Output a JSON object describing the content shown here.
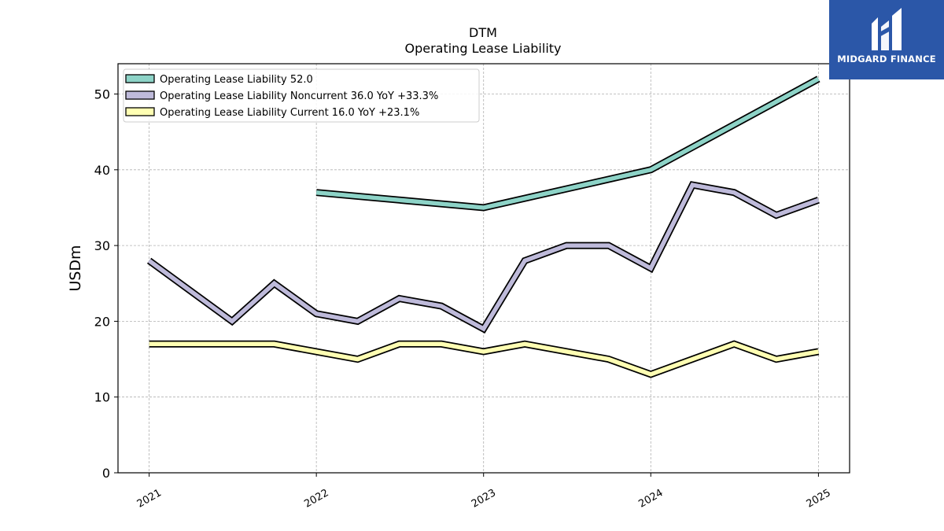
{
  "brand": {
    "name": "MIDGARD FINANCE",
    "bg_color": "#2b57a8",
    "icon": "midgard-logo-mark"
  },
  "chart_data": {
    "type": "line",
    "title": "DTM",
    "subtitle": "Operating Lease Liability",
    "xlabel": "",
    "ylabel": "USDm",
    "ylim": [
      0,
      54
    ],
    "yticks": [
      0,
      10,
      20,
      30,
      40,
      50
    ],
    "xticks": [
      "2021",
      "2022",
      "2023",
      "2024",
      "2025"
    ],
    "grid": true,
    "legend_position": "top-left",
    "series": [
      {
        "name": "Operating Lease Liability  52.0",
        "color": "#8dd3c7",
        "points": [
          [
            "2022-01-01",
            37.0
          ],
          [
            "2023-01-01",
            35.0
          ],
          [
            "2024-01-01",
            40.0
          ],
          [
            "2025-01-01",
            52.0
          ]
        ]
      },
      {
        "name": "Operating Lease Liability Noncurrent  36.0 YoY +33.3%",
        "color": "#bebada",
        "points": [
          [
            "2021-01-01",
            28.0
          ],
          [
            "2021-07-01",
            20.0
          ],
          [
            "2021-10-01",
            25.0
          ],
          [
            "2022-01-01",
            21.0
          ],
          [
            "2022-04-01",
            20.0
          ],
          [
            "2022-07-01",
            23.0
          ],
          [
            "2022-10-01",
            22.0
          ],
          [
            "2023-01-01",
            19.0
          ],
          [
            "2023-04-01",
            28.0
          ],
          [
            "2023-07-01",
            30.0
          ],
          [
            "2023-10-01",
            30.0
          ],
          [
            "2024-01-01",
            27.0
          ],
          [
            "2024-04-01",
            38.0
          ],
          [
            "2024-07-01",
            37.0
          ],
          [
            "2024-10-01",
            34.0
          ],
          [
            "2025-01-01",
            36.0
          ]
        ]
      },
      {
        "name": "Operating Lease Liability Current  16.0 YoY +23.1%",
        "color": "#ffffb3",
        "points": [
          [
            "2021-01-01",
            17.0
          ],
          [
            "2021-10-01",
            17.0
          ],
          [
            "2022-04-01",
            15.0
          ],
          [
            "2022-07-01",
            17.0
          ],
          [
            "2022-10-01",
            17.0
          ],
          [
            "2023-01-01",
            16.0
          ],
          [
            "2023-04-01",
            17.0
          ],
          [
            "2023-10-01",
            15.0
          ],
          [
            "2024-01-01",
            13.0
          ],
          [
            "2024-07-01",
            17.0
          ],
          [
            "2024-10-01",
            15.0
          ],
          [
            "2025-01-01",
            16.0
          ]
        ]
      }
    ]
  }
}
